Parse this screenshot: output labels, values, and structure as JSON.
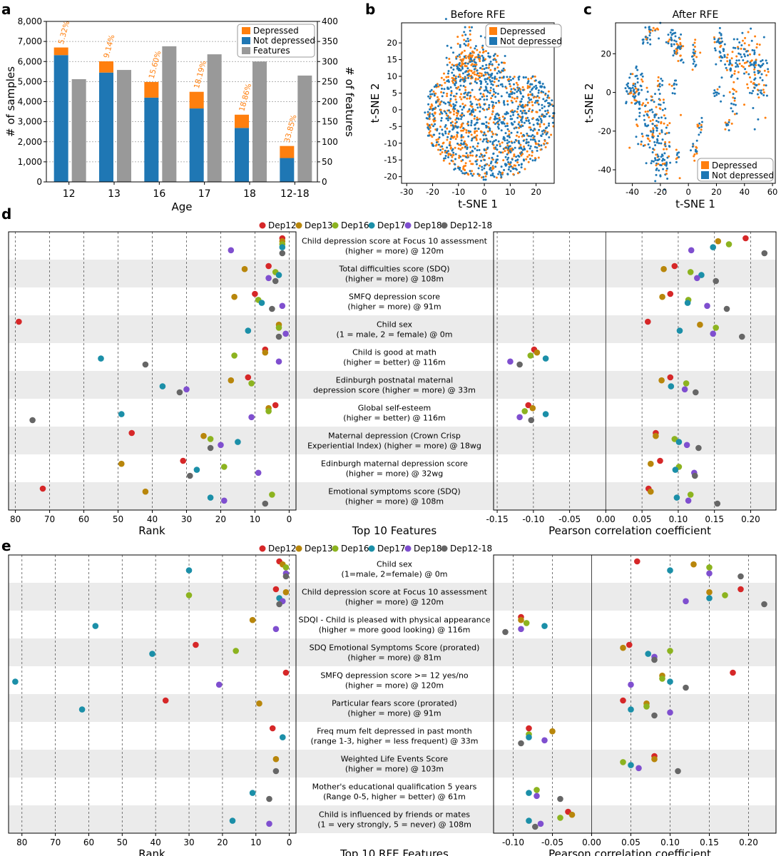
{
  "colors": {
    "depressed": "#ff7f0e",
    "not_depressed": "#1f77b4",
    "features": "#999999",
    "Dep12": "#d62728",
    "Dep13": "#b8860b",
    "Dep16": "#8cb31f",
    "Dep17": "#1b8fa8",
    "Dep18": "#7f4fcf",
    "Dep12-18": "#666666",
    "band": "#ebebeb"
  },
  "panel_labels": {
    "a": "a",
    "b": "b",
    "c": "c",
    "d": "d",
    "e": "e"
  },
  "chart_data": [
    {
      "id": "a",
      "type": "bar",
      "xlabel": "Age",
      "ylabel": "# of samples",
      "ylabel_right": "# of features",
      "categories": [
        "12",
        "13",
        "16",
        "17",
        "18",
        "12-18"
      ],
      "ylim": [
        0,
        8000
      ],
      "ylim_right": [
        0,
        400
      ],
      "yticks": [
        "0",
        "1,000",
        "2,000",
        "3,000",
        "4,000",
        "5,000",
        "6,000",
        "7,000",
        "8,000"
      ],
      "yticks_right": [
        "0",
        "50",
        "100",
        "150",
        "200",
        "250",
        "300",
        "350",
        "400"
      ],
      "legend": [
        "Depressed",
        "Not depressed",
        "Features"
      ],
      "series": [
        {
          "name": "Not depressed",
          "values": [
            6320,
            5450,
            4200,
            3660,
            2690,
            1190
          ]
        },
        {
          "name": "Depressed",
          "values": [
            380,
            560,
            780,
            830,
            660,
            600
          ]
        },
        {
          "name": "Features",
          "axis": "right",
          "values": [
            256,
            279,
            338,
            318,
            300,
            265
          ]
        }
      ],
      "bar_labels": [
        "5.32%",
        "9.14%",
        "15.60%",
        "18.19%",
        "18.86%",
        "33.85%"
      ]
    },
    {
      "id": "b",
      "type": "scatter",
      "title": "Before RFE",
      "xlabel": "t-SNE 1",
      "ylabel": "t-SNE 2",
      "xlim": [
        -32,
        27
      ],
      "ylim": [
        -22,
        26
      ],
      "xticks": [
        "-30",
        "-20",
        "-10",
        "0",
        "10",
        "20"
      ],
      "yticks": [
        "-20",
        "-15",
        "-10",
        "-5",
        "0",
        "5",
        "10",
        "15",
        "20"
      ],
      "legend": [
        "Depressed",
        "Not depressed"
      ]
    },
    {
      "id": "c",
      "type": "scatter",
      "title": "After RFE",
      "xlabel": "t-SNE 1",
      "ylabel": "t-SNE 2",
      "xlim": [
        -52,
        62
      ],
      "ylim": [
        -47,
        36
      ],
      "xticks": [
        "-40",
        "-20",
        "0",
        "20",
        "40",
        "60"
      ],
      "yticks": [
        "-40",
        "-20",
        "0",
        "20"
      ],
      "legend": [
        "Depressed",
        "Not depressed"
      ]
    },
    {
      "id": "d",
      "type": "scatter",
      "legend": [
        "Dep12",
        "Dep13",
        "Dep16",
        "Dep17",
        "Dep18",
        "Dep12-18"
      ],
      "center_xlabel": "Top 10 Features",
      "left": {
        "xlabel": "Rank",
        "xlim": [
          82,
          -2
        ],
        "xticks": [
          "80",
          "70",
          "60",
          "50",
          "40",
          "30",
          "20",
          "10",
          "0"
        ]
      },
      "right": {
        "xlabel": "Pearson correlation coefficient",
        "xlim": [
          -0.155,
          0.235
        ],
        "xticks": [
          "-0.15",
          "-0.10",
          "-0.05",
          "0.00",
          "0.05",
          "0.10",
          "0.15",
          "0.20"
        ]
      },
      "features": [
        {
          "line1": "Child depression score at Focus 10 assessment",
          "line2": "(higher = more) @ 120m",
          "rank": {
            "Dep12": 2,
            "Dep13": 2,
            "Dep16": 2,
            "Dep17": 2,
            "Dep18": 17,
            "Dep12-18": 2
          },
          "corr": {
            "Dep12": 0.193,
            "Dep13": 0.155,
            "Dep16": 0.17,
            "Dep17": 0.148,
            "Dep18": 0.118,
            "Dep12-18": 0.219
          }
        },
        {
          "line1": "Total difficulties score (SDQ)",
          "line2": "(higher = more) @ 108m",
          "rank": {
            "Dep12": 6,
            "Dep13": 13,
            "Dep16": 4,
            "Dep17": 3,
            "Dep18": 6,
            "Dep12-18": 4
          },
          "corr": {
            "Dep12": 0.095,
            "Dep13": 0.08,
            "Dep16": 0.117,
            "Dep17": 0.132,
            "Dep18": 0.126,
            "Dep12-18": 0.152
          }
        },
        {
          "line1": "SMFQ depression score",
          "line2": "(higher = more) @ 91m",
          "rank": {
            "Dep12": 10,
            "Dep13": 16,
            "Dep16": 9,
            "Dep17": 8,
            "Dep18": 2,
            "Dep12-18": 5
          },
          "corr": {
            "Dep12": 0.089,
            "Dep13": 0.078,
            "Dep16": 0.114,
            "Dep17": 0.113,
            "Dep18": 0.14,
            "Dep12-18": 0.167
          }
        },
        {
          "line1": "Child sex",
          "line2": "(1 = male, 2 = female) @ 0m",
          "rank": {
            "Dep12": 79,
            "Dep13": 3,
            "Dep16": 3,
            "Dep17": 12,
            "Dep18": 1,
            "Dep12-18": 3
          },
          "corr": {
            "Dep12": 0.058,
            "Dep13": 0.13,
            "Dep16": 0.152,
            "Dep17": 0.102,
            "Dep18": 0.148,
            "Dep12-18": 0.188
          }
        },
        {
          "line1": "Child is good at math",
          "line2": "(higher = better) @ 116m",
          "rank": {
            "Dep12": 7,
            "Dep13": 7,
            "Dep16": 16,
            "Dep17": 55,
            "Dep18": 3,
            "Dep12-18": 42
          },
          "corr": {
            "Dep12": -0.099,
            "Dep13": -0.095,
            "Dep16": -0.104,
            "Dep17": -0.083,
            "Dep18": -0.132,
            "Dep12-18": -0.119
          }
        },
        {
          "line1": "Edinburgh postnatal maternal",
          "line2": "depression score (higher = more) @ 33m",
          "rank": {
            "Dep12": 12,
            "Dep13": 17,
            "Dep16": 11,
            "Dep17": 37,
            "Dep18": 30,
            "Dep12-18": 32
          },
          "corr": {
            "Dep12": 0.089,
            "Dep13": 0.077,
            "Dep16": 0.111,
            "Dep17": 0.09,
            "Dep18": 0.109,
            "Dep12-18": 0.124
          }
        },
        {
          "line1": "Global self-esteem",
          "line2": "(higher = better) @ 116m",
          "rank": {
            "Dep12": 4,
            "Dep13": 6,
            "Dep16": 6,
            "Dep17": 49,
            "Dep18": 11,
            "Dep12-18": 75
          },
          "corr": {
            "Dep12": -0.107,
            "Dep13": -0.101,
            "Dep16": -0.112,
            "Dep17": -0.083,
            "Dep18": -0.119,
            "Dep12-18": -0.103
          }
        },
        {
          "line1": "Maternal depression (Crown Crisp",
          "line2": "Experiential Index) (higher = more) @ 18wg",
          "rank": {
            "Dep12": 46,
            "Dep13": 25,
            "Dep16": 23,
            "Dep17": 15,
            "Dep18": 20,
            "Dep12-18": 23
          },
          "corr": {
            "Dep12": 0.069,
            "Dep13": 0.069,
            "Dep16": 0.095,
            "Dep17": 0.101,
            "Dep18": 0.112,
            "Dep12-18": 0.128
          }
        },
        {
          "line1": "Edinburgh maternal depression score",
          "line2": "(higher = more) @ 32wg",
          "rank": {
            "Dep12": 31,
            "Dep13": 49,
            "Dep16": 19,
            "Dep17": 27,
            "Dep18": 9,
            "Dep12-18": 29
          },
          "corr": {
            "Dep12": 0.075,
            "Dep13": 0.062,
            "Dep16": 0.101,
            "Dep17": 0.096,
            "Dep18": 0.122,
            "Dep12-18": 0.123
          }
        },
        {
          "line1": "Emotional symptoms score (SDQ)",
          "line2": "(higher = more) @ 108m",
          "rank": {
            "Dep12": 72,
            "Dep13": 42,
            "Dep16": 5,
            "Dep17": 23,
            "Dep18": 19,
            "Dep12-18": 7
          },
          "corr": {
            "Dep12": 0.059,
            "Dep13": 0.062,
            "Dep16": 0.117,
            "Dep17": 0.098,
            "Dep18": 0.114,
            "Dep12-18": 0.154
          }
        }
      ]
    },
    {
      "id": "e",
      "type": "scatter",
      "legend": [
        "Dep12",
        "Dep13",
        "Dep16",
        "Dep17",
        "Dep18",
        "Dep12-18"
      ],
      "center_xlabel": "Top 10 RFE Features",
      "left": {
        "xlabel": "Rank",
        "xlim": [
          84,
          -2
        ],
        "xticks": [
          "80",
          "70",
          "60",
          "50",
          "40",
          "30",
          "20",
          "10",
          "0"
        ]
      },
      "right": {
        "xlabel": "Pearson correlation coefficient",
        "xlim": [
          -0.125,
          0.235
        ],
        "xticks": [
          "-0.10",
          "-0.05",
          "0.00",
          "0.05",
          "0.10",
          "0.15",
          "0.20"
        ]
      },
      "features": [
        {
          "line1": "Child sex",
          "line2": "(1=male, 2=female) @ 0m",
          "rank": {
            "Dep12": 3,
            "Dep13": 2,
            "Dep16": 1,
            "Dep17": 30,
            "Dep18": 1,
            "Dep12-18": 1
          },
          "corr": {
            "Dep12": 0.058,
            "Dep13": 0.13,
            "Dep16": 0.15,
            "Dep17": 0.1,
            "Dep18": 0.15,
            "Dep12-18": 0.19
          }
        },
        {
          "line1": "Child depression score at Focus 10 assessment",
          "line2": "(higher = more) @ 120m",
          "rank": {
            "Dep12": 4,
            "Dep13": 1,
            "Dep16": 30,
            "Dep17": 3,
            "Dep18": 2,
            "Dep12-18": 3
          },
          "corr": {
            "Dep12": 0.19,
            "Dep13": 0.15,
            "Dep16": 0.17,
            "Dep17": 0.15,
            "Dep18": 0.12,
            "Dep12-18": 0.22
          }
        },
        {
          "line1": "SDQI - Child is pleased with physical appearance",
          "line2": "(higher = more good looking) @ 116m",
          "rank": {
            "Dep12": null,
            "Dep13": 11,
            "Dep16": null,
            "Dep17": 58,
            "Dep18": 4,
            "Dep12-18": null
          },
          "corr": {
            "Dep12": -0.09,
            "Dep13": -0.09,
            "Dep16": -0.083,
            "Dep17": -0.06,
            "Dep18": -0.09,
            "Dep12-18": -0.11
          }
        },
        {
          "line1": "SDQ Emotional Symptoms Score (prorated)",
          "line2": "(higher = more) @ 81m",
          "rank": {
            "Dep12": 28,
            "Dep13": null,
            "Dep16": 16,
            "Dep17": 41,
            "Dep18": null,
            "Dep12-18": null
          },
          "corr": {
            "Dep12": 0.048,
            "Dep13": 0.04,
            "Dep16": 0.1,
            "Dep17": 0.072,
            "Dep18": 0.08,
            "Dep12-18": 0.08
          }
        },
        {
          "line1": "SMFQ depression score >= 12 yes/no",
          "line2": "(higher = more) @ 120m",
          "rank": {
            "Dep12": 1,
            "Dep13": null,
            "Dep16": null,
            "Dep17": 82,
            "Dep18": 21,
            "Dep12-18": null
          },
          "corr": {
            "Dep12": 0.18,
            "Dep13": 0.09,
            "Dep16": 0.09,
            "Dep17": 0.1,
            "Dep18": 0.05,
            "Dep12-18": 0.12
          }
        },
        {
          "line1": "Particular fears score (prorated)",
          "line2": "(higher = more) @ 91m",
          "rank": {
            "Dep12": 37,
            "Dep13": 9,
            "Dep16": null,
            "Dep17": 62,
            "Dep18": null,
            "Dep12-18": null
          },
          "corr": {
            "Dep12": 0.04,
            "Dep13": 0.07,
            "Dep16": 0.07,
            "Dep17": 0.05,
            "Dep18": 0.1,
            "Dep12-18": 0.08
          }
        },
        {
          "line1": "Freq mum felt depressed in past month",
          "line2": "(range 1-3, higher = less frequent) @ 33m",
          "rank": {
            "Dep12": 5,
            "Dep13": null,
            "Dep16": null,
            "Dep17": 2,
            "Dep18": null,
            "Dep12-18": null
          },
          "corr": {
            "Dep12": -0.08,
            "Dep13": -0.05,
            "Dep16": -0.08,
            "Dep17": -0.08,
            "Dep18": -0.06,
            "Dep12-18": -0.09
          }
        },
        {
          "line1": "Weighted Life Events Score",
          "line2": "(higher = more) @ 103m",
          "rank": {
            "Dep12": null,
            "Dep13": 4,
            "Dep16": null,
            "Dep17": null,
            "Dep18": null,
            "Dep12-18": 4
          },
          "corr": {
            "Dep12": 0.08,
            "Dep13": 0.08,
            "Dep16": 0.04,
            "Dep17": 0.05,
            "Dep18": 0.06,
            "Dep12-18": 0.11
          }
        },
        {
          "line1": "Mother's educational qualification 5 years",
          "line2": "(Range 0-5, higher = better) @ 61m",
          "rank": {
            "Dep12": null,
            "Dep13": null,
            "Dep16": null,
            "Dep17": 11,
            "Dep18": null,
            "Dep12-18": 6
          },
          "corr": {
            "Dep12": null,
            "Dep13": null,
            "Dep16": -0.07,
            "Dep17": -0.08,
            "Dep18": -0.07,
            "Dep12-18": -0.04
          }
        },
        {
          "line1": "Child is influenced by friends or mates",
          "line2": "(1 = very strongly, 5 = never) @ 108m",
          "rank": {
            "Dep12": null,
            "Dep13": null,
            "Dep16": null,
            "Dep17": 17,
            "Dep18": 6,
            "Dep12-18": null
          },
          "corr": {
            "Dep12": -0.03,
            "Dep13": -0.025,
            "Dep16": -0.04,
            "Dep17": -0.08,
            "Dep18": -0.065,
            "Dep12-18": -0.072
          }
        }
      ]
    }
  ]
}
